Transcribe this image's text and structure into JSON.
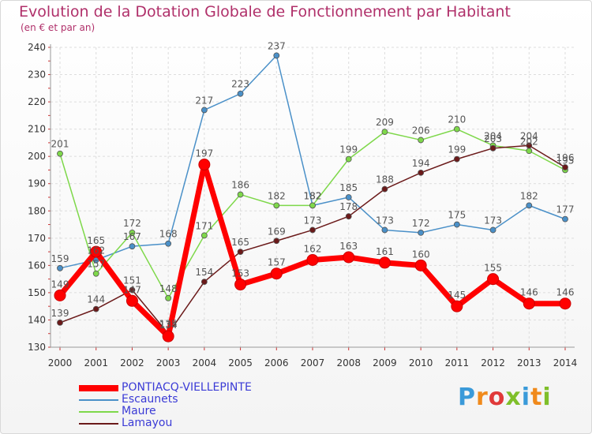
{
  "header": {
    "title": "Evolution de la Dotation Globale de Fonctionnement par Habitant",
    "subtitle": "(en € et par an)"
  },
  "logo": {
    "text": "Proxiti",
    "colors": [
      "#3a9ad9",
      "#f08a1c",
      "#e03a3a",
      "#7fbf2a",
      "#3a9ad9",
      "#f08a1c",
      "#7fbf2a"
    ]
  },
  "chart_data": {
    "type": "line",
    "title": "Evolution de la Dotation Globale de Fonctionnement par Habitant",
    "subtitle": "(en € et par an)",
    "xlabel": "",
    "ylabel": "",
    "categories": [
      "2000",
      "2001",
      "2002",
      "2003",
      "2004",
      "2005",
      "2006",
      "2007",
      "2008",
      "2009",
      "2010",
      "2011",
      "2012",
      "2013",
      "2014"
    ],
    "ylim": [
      130,
      240
    ],
    "yticks": [
      130,
      140,
      150,
      160,
      170,
      180,
      190,
      200,
      210,
      220,
      230,
      240
    ],
    "grid": true,
    "legend_position": "bottom-left",
    "series": [
      {
        "name": "PONTIACQ-VIELLEPINTE",
        "color": "#ff0000",
        "emphasis": true,
        "values": [
          149,
          165,
          147,
          134,
          197,
          153,
          157,
          162,
          163,
          161,
          160,
          145,
          155,
          146,
          146
        ]
      },
      {
        "name": "Escaunets",
        "color": "#4a90c8",
        "emphasis": false,
        "values": [
          159,
          162,
          167,
          168,
          217,
          223,
          237,
          182,
          185,
          173,
          172,
          175,
          173,
          182,
          177
        ]
      },
      {
        "name": "Maure",
        "color": "#7ed84a",
        "emphasis": false,
        "values": [
          201,
          157,
          172,
          148,
          171,
          186,
          182,
          182,
          199,
          209,
          206,
          210,
          204,
          202,
          195
        ]
      },
      {
        "name": "Lamayou",
        "color": "#6b1a1a",
        "emphasis": false,
        "values": [
          139,
          144,
          151,
          135,
          154,
          165,
          169,
          173,
          178,
          188,
          194,
          199,
          203,
          204,
          196
        ]
      }
    ]
  }
}
